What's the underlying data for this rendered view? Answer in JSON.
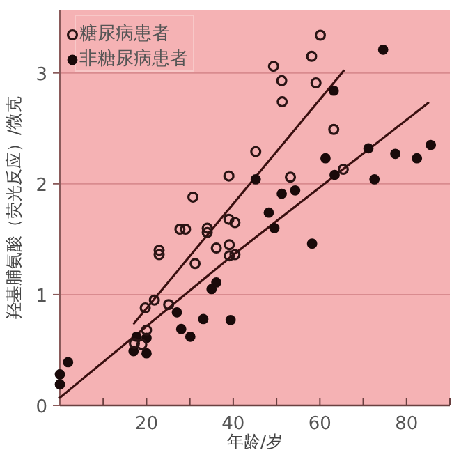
{
  "chart_data": {
    "type": "scatter",
    "xlabel": "年龄/岁",
    "ylabel": "羟基脯氨酸（荧光反应）/微克",
    "xlim": [
      0,
      90
    ],
    "ylim": [
      0,
      3.57
    ],
    "xticks": [
      {
        "value": 0,
        "label": null
      },
      {
        "value": 10,
        "label": null
      },
      20,
      {
        "value": 30,
        "label": null
      },
      40,
      {
        "value": 50,
        "label": null
      },
      60,
      {
        "value": 70,
        "label": null
      },
      80,
      {
        "value": 90,
        "label": null
      }
    ],
    "yticks": [
      0,
      1,
      2,
      3
    ],
    "grid": "y",
    "legend": "top left",
    "marker": "circle",
    "series": [
      {
        "name": "糖尿病患者",
        "type": "scatter",
        "color": "#2a1414",
        "x": [
          19.7,
          21.8,
          20,
          18.9,
          17.2,
          25.1,
          22.9,
          22.9,
          27.7,
          29,
          31.2,
          34,
          34,
          36.1,
          39,
          40.4,
          39.1,
          40.4,
          39.1,
          30.7,
          39,
          45.2,
          49.3,
          51.2,
          51.3,
          58.1,
          60.1,
          59.1,
          63.2,
          53.2,
          65.4
        ],
        "values": [
          0.88,
          0.95,
          0.68,
          0.55,
          0.56,
          0.91,
          1.4,
          1.36,
          1.59,
          1.59,
          1.28,
          1.6,
          1.56,
          1.42,
          1.68,
          1.65,
          1.45,
          1.36,
          1.35,
          1.88,
          2.07,
          2.29,
          3.06,
          2.93,
          2.74,
          3.15,
          3.34,
          2.91,
          2.49,
          2.06,
          2.13
        ]
      },
      {
        "name": "非糖尿病患者",
        "type": "scatter",
        "color": "#1a0a0a",
        "x": [
          0,
          0,
          1.9,
          17,
          17.7,
          20,
          20,
          27,
          28,
          30.1,
          33.1,
          35,
          36.1,
          39.4,
          74.6,
          63.2,
          71.2,
          77.4,
          82.4,
          85.6,
          61.3,
          63.4,
          72.6,
          45.2,
          51.2,
          54.3,
          48.2,
          49.5,
          58.2
        ],
        "values": [
          0.28,
          0.19,
          0.39,
          0.49,
          0.62,
          0.61,
          0.47,
          0.84,
          0.69,
          0.62,
          0.78,
          1.05,
          1.11,
          0.77,
          3.21,
          2.84,
          2.32,
          2.27,
          2.23,
          2.35,
          2.23,
          2.08,
          2.04,
          2.04,
          1.91,
          1.94,
          1.74,
          1.6,
          1.46
        ]
      },
      {
        "type": "line",
        "color": "#3a1010",
        "line_style": "solid",
        "marker": "none",
        "x": [
          17.1,
          65.5
        ],
        "values": [
          0.74,
          3.02
        ]
      },
      {
        "type": "line",
        "color": "#3a1010",
        "line_style": "solid",
        "marker": "none",
        "x": [
          0,
          39.7,
          85
        ],
        "values": [
          0.07,
          1.35,
          2.73
        ]
      }
    ]
  }
}
